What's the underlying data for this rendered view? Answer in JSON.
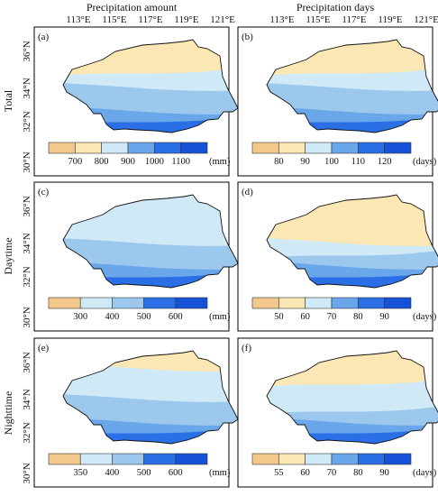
{
  "columns": [
    {
      "title": "Precipitation amount",
      "unit": "(mm)"
    },
    {
      "title": "Precipitation days",
      "unit": "(days)"
    }
  ],
  "row_labels": [
    "Total",
    "Daytime",
    "Nighttime"
  ],
  "lon_labels": [
    "113°E",
    "115°E",
    "117°E",
    "119°E",
    "121°E"
  ],
  "lat_labels": [
    "36°N",
    "34°N",
    "32°N",
    "30°N"
  ],
  "colors": {
    "scale": [
      "#f3c98b",
      "#fbe7b4",
      "#cfe9f6",
      "#9cc8ee",
      "#6aa6ea",
      "#2a6fe6",
      "#1652d8"
    ],
    "outline": "#111111",
    "frame": "#000000"
  },
  "panels": [
    {
      "label": "(a)",
      "ticks": [
        "700",
        "800",
        "900",
        "1000",
        "1100"
      ],
      "levels": [
        1,
        1,
        2,
        3,
        3,
        4,
        5,
        6
      ]
    },
    {
      "label": "(b)",
      "ticks": [
        "80",
        "90",
        "100",
        "110",
        "120"
      ],
      "levels": [
        1,
        1,
        2,
        3,
        3,
        4,
        5,
        6
      ]
    },
    {
      "label": "(c)",
      "ticks": [
        "300",
        "400",
        "500",
        "600"
      ],
      "levels": [
        2,
        2,
        2,
        3,
        3,
        4,
        5,
        6
      ]
    },
    {
      "label": "(d)",
      "ticks": [
        "50",
        "60",
        "70",
        "80",
        "90"
      ],
      "levels": [
        1,
        1,
        1,
        2,
        3,
        4,
        5,
        6
      ]
    },
    {
      "label": "(e)",
      "ticks": [
        "350",
        "400",
        "500",
        "600"
      ],
      "levels": [
        1,
        2,
        2,
        3,
        3,
        4,
        5,
        6
      ]
    },
    {
      "label": "(f)",
      "ticks": [
        "55",
        "60",
        "70",
        "80",
        "90"
      ],
      "levels": [
        1,
        1,
        2,
        2,
        3,
        4,
        5,
        6
      ]
    }
  ]
}
